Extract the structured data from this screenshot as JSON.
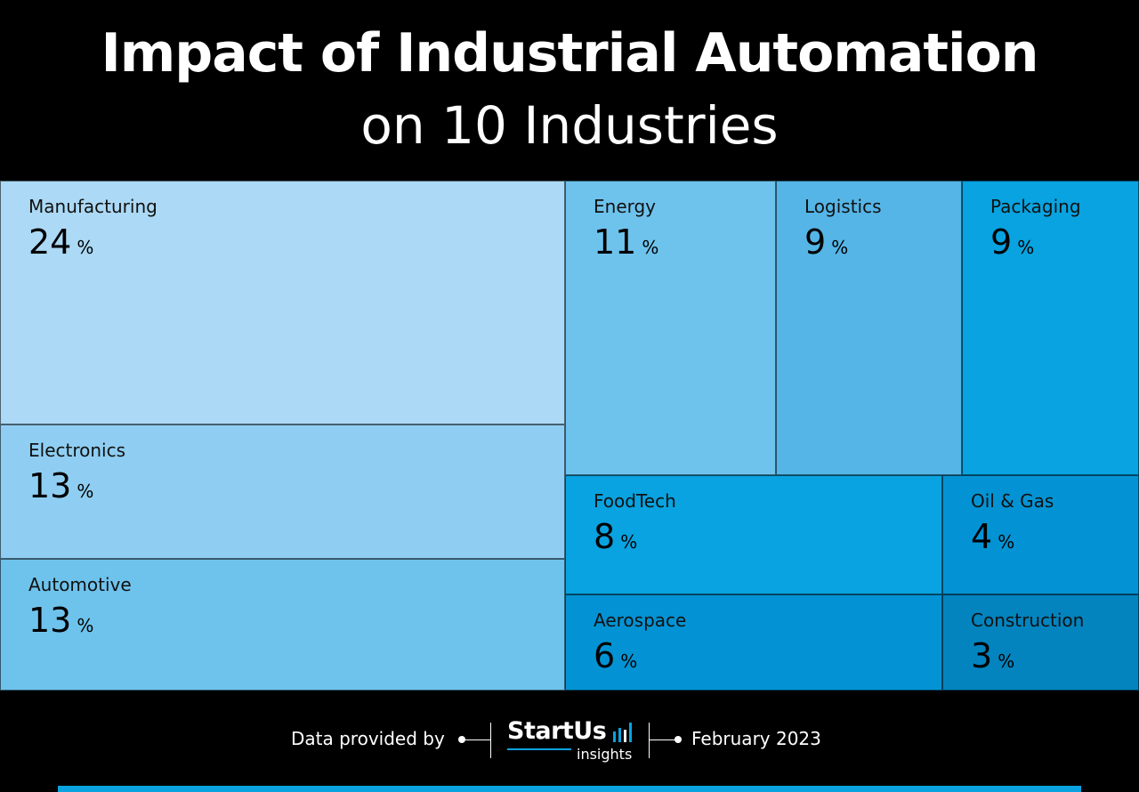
{
  "title": {
    "line1": "Impact of Industrial Automation",
    "line2": "on 10 Industries"
  },
  "chart_data": {
    "type": "treemap",
    "unit": "%",
    "items": [
      {
        "name": "Manufacturing",
        "value": 24,
        "color": "#acd9f5"
      },
      {
        "name": "Electronics",
        "value": 13,
        "color": "#8fcef2"
      },
      {
        "name": "Automotive",
        "value": 13,
        "color": "#6ec3ed"
      },
      {
        "name": "Energy",
        "value": 11,
        "color": "#6ec3ed"
      },
      {
        "name": "Logistics",
        "value": 9,
        "color": "#55b5e6"
      },
      {
        "name": "Packaging",
        "value": 9,
        "color": "#08a3e0"
      },
      {
        "name": "FoodTech",
        "value": 8,
        "color": "#08a3e0"
      },
      {
        "name": "Oil & Gas",
        "value": 4,
        "color": "#0393d4"
      },
      {
        "name": "Aerospace",
        "value": 6,
        "color": "#0393d4"
      },
      {
        "name": "Construction",
        "value": 3,
        "color": "#0384bf"
      }
    ]
  },
  "footer": {
    "provided_label": "Data provided by",
    "brand": "StartUs",
    "brand_sub": "insights",
    "date": "February 2023"
  }
}
